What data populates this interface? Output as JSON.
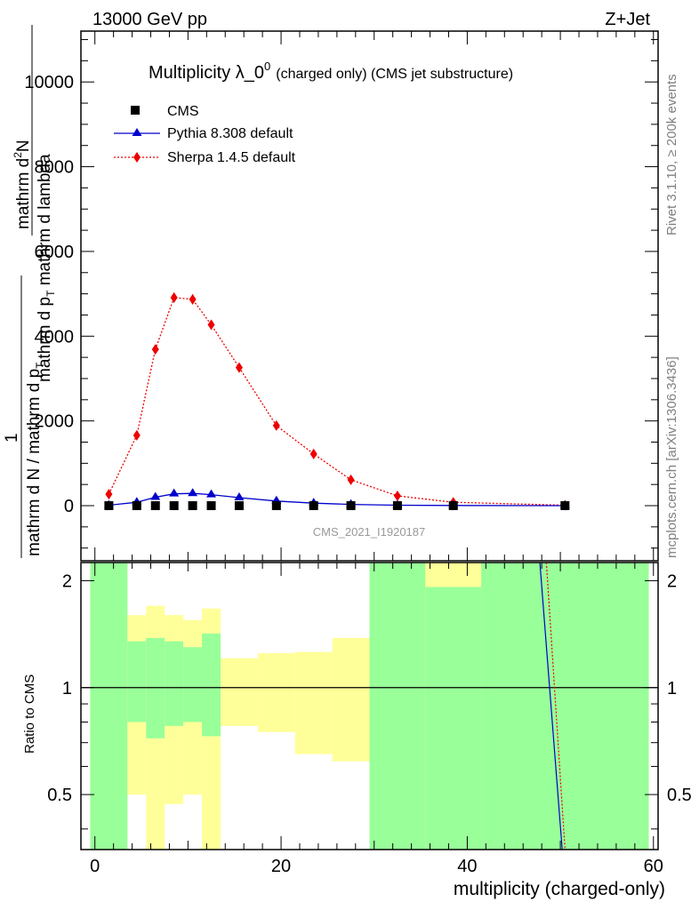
{
  "header": {
    "energy": "13000 GeV pp",
    "process": "Z+Jet"
  },
  "colors": {
    "cms": "#000000",
    "pythia": "#0000cc",
    "sherpa": "#ee0000",
    "band_green": "#99ff99",
    "band_yellow": "#ffff99"
  },
  "side_labels": {
    "rivet": "Rivet 3.1.10, ≥ 200k events",
    "mcplots": "mcplots.cern.ch [arXiv:1306.3436]"
  },
  "chart_data": [
    {
      "type": "scatter",
      "title": "Multiplicity λ_0",
      "title_sup": "0",
      "title_suffix": "(charged only) (CMS jet substructure)",
      "ylabel_num": "mathrm d",
      "ylabel_num_sup": "2",
      "ylabel_num_tail": "N",
      "ylabel_den": "mathrm d p",
      "ylabel_den_sub": "T",
      "ylabel_den_tail": " mathrm d lambda",
      "ylabel_prefix": "1",
      "ylabel_prefix_den": "mathrm d N / mathrm d p",
      "ylabel_prefix_den_sub": "T",
      "watermark": "CMS_2021_I1920187",
      "xlim": [
        -1.5,
        60.5
      ],
      "ylim": [
        -1300,
        11200
      ],
      "yticks": [
        0,
        2000,
        4000,
        6000,
        8000,
        10000
      ],
      "ytick_labels": [
        "0",
        "2000",
        "4000",
        "6000",
        "8000",
        "10000"
      ],
      "legend": [
        {
          "name": "CMS",
          "marker": "square"
        },
        {
          "name": "Pythia 8.308 default",
          "marker": "triangle"
        },
        {
          "name": "Sherpa 1.4.5 default",
          "marker": "diamond"
        }
      ],
      "series": [
        {
          "name": "CMS",
          "x": [
            1.5,
            4.5,
            6.5,
            8.5,
            10.5,
            12.5,
            15.5,
            19.5,
            23.5,
            27.5,
            32.5,
            38.5,
            50.5
          ],
          "y": [
            0,
            0,
            0,
            0,
            0,
            0,
            0,
            0,
            0,
            0,
            0,
            0,
            0
          ]
        },
        {
          "name": "Pythia 8.308 default",
          "x": [
            1.5,
            4.5,
            6.5,
            8.5,
            10.5,
            12.5,
            15.5,
            19.5,
            23.5,
            27.5,
            32.5,
            38.5,
            50.5
          ],
          "y": [
            10,
            80,
            200,
            280,
            290,
            260,
            190,
            110,
            60,
            30,
            10,
            5,
            0
          ]
        },
        {
          "name": "Sherpa 1.4.5 default",
          "x": [
            1.5,
            4.5,
            6.5,
            8.5,
            10.5,
            12.5,
            15.5,
            19.5,
            23.5,
            27.5,
            32.5,
            38.5,
            50.5
          ],
          "y": [
            270,
            1660,
            3690,
            4910,
            4870,
            4270,
            3260,
            1890,
            1220,
            610,
            230,
            80,
            10
          ],
          "yerr": [
            0,
            60,
            100,
            120,
            120,
            100,
            80,
            50,
            40,
            25,
            15,
            10,
            5
          ]
        }
      ]
    },
    {
      "type": "area",
      "ylabel": "Ratio to CMS",
      "xlabel": "multiplicity (charged-only)",
      "xlim": [
        -1.5,
        60.5
      ],
      "ylim": [
        0.35,
        2.25
      ],
      "yticks": [
        0.5,
        1,
        2
      ],
      "ytick_labels": [
        "0.5",
        "1",
        "2"
      ],
      "xticks": [
        0,
        20,
        40,
        60
      ],
      "xtick_labels": [
        "0",
        "20",
        "40",
        "60"
      ],
      "reference_line": 1,
      "bins": [
        {
          "lo": -0.5,
          "hi": 3.5,
          "green": [
            0.35,
            2.25
          ],
          "yellow": [
            0.35,
            2.25
          ]
        },
        {
          "lo": 3.5,
          "hi": 5.5,
          "green": [
            0.8,
            1.35
          ],
          "yellow": [
            0.5,
            1.6
          ]
        },
        {
          "lo": 5.5,
          "hi": 7.5,
          "green": [
            0.72,
            1.38
          ],
          "yellow": [
            0.35,
            1.7
          ]
        },
        {
          "lo": 7.5,
          "hi": 9.5,
          "green": [
            0.78,
            1.35
          ],
          "yellow": [
            0.47,
            1.6
          ]
        },
        {
          "lo": 9.5,
          "hi": 11.5,
          "green": [
            0.8,
            1.3
          ],
          "yellow": [
            0.5,
            1.55
          ]
        },
        {
          "lo": 11.5,
          "hi": 13.5,
          "green": [
            0.73,
            1.42
          ],
          "yellow": [
            0.35,
            1.67
          ]
        },
        {
          "lo": 13.5,
          "hi": 17.5,
          "green": [
            1.0,
            1.0
          ],
          "yellow": [
            0.78,
            1.21
          ]
        },
        {
          "lo": 17.5,
          "hi": 21.5,
          "green": [
            1.0,
            1.0
          ],
          "yellow": [
            0.75,
            1.25
          ]
        },
        {
          "lo": 21.5,
          "hi": 25.5,
          "green": [
            1.0,
            1.0
          ],
          "yellow": [
            0.65,
            1.26
          ]
        },
        {
          "lo": 25.5,
          "hi": 29.5,
          "green": [
            1.0,
            1.0
          ],
          "yellow": [
            0.62,
            1.38
          ]
        },
        {
          "lo": 29.5,
          "hi": 35.5,
          "green": [
            0.35,
            2.25
          ],
          "yellow": [
            0.35,
            2.25
          ]
        },
        {
          "lo": 35.5,
          "hi": 41.5,
          "green": [
            0.35,
            1.92
          ],
          "yellow": [
            0.35,
            2.25
          ]
        },
        {
          "lo": 41.5,
          "hi": 59.5,
          "green": [
            0.35,
            2.25
          ],
          "yellow": [
            0.35,
            2.25
          ]
        }
      ],
      "series": [
        {
          "name": "Pythia ratio",
          "x": [
            47.8,
            50.2
          ],
          "y": [
            2.25,
            0.35
          ]
        },
        {
          "name": "Sherpa ratio",
          "x": [
            48.5,
            50.5
          ],
          "y": [
            2.25,
            0.35
          ]
        }
      ]
    }
  ]
}
